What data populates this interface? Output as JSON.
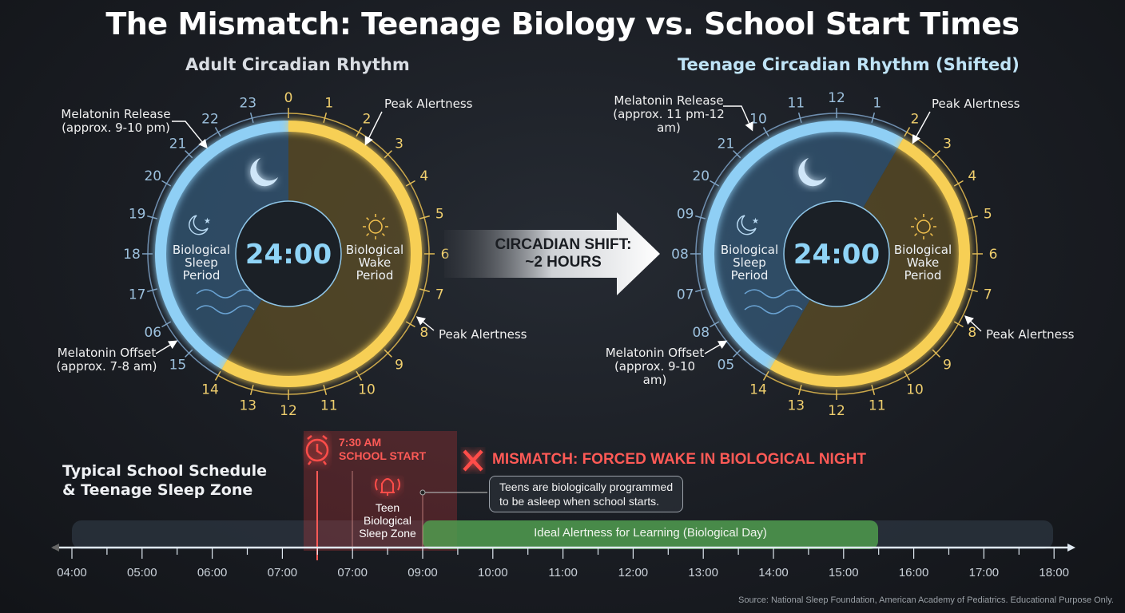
{
  "title": "The Mismatch: Teenage Biology vs. School Start Times",
  "adult": {
    "title": "Adult Circadian Rhythm",
    "center_time": "24:00",
    "sleep_label": [
      "Biological",
      "Sleep",
      "Period"
    ],
    "wake_label": [
      "Biological",
      "Wake",
      "Period"
    ],
    "dial_labels": [
      "0",
      "1",
      "2",
      "3",
      "4",
      "5",
      "6",
      "7",
      "8",
      "9",
      "10",
      "11",
      "12",
      "13",
      "14",
      "15",
      "06",
      "17",
      "18",
      "19",
      "20",
      "21",
      "22",
      "23"
    ],
    "sleep_arc_hours": [
      14,
      24
    ],
    "melatonin_release": [
      "Melatonin Release",
      "(approx. 9-10 pm)"
    ],
    "melatonin_offset": [
      "Melatonin Offset",
      "(approx. 7-8 am)"
    ],
    "peak_alertness_1": "Peak Alertness",
    "peak_alertness_2": "Peak Alertness"
  },
  "shift": {
    "line1": "CIRCADIAN SHIFT:",
    "line2": "~2 HOURS"
  },
  "teen": {
    "title": "Teenage Circadian Rhythm (Shifted)",
    "center_time": "24:00",
    "sleep_label": [
      "Biological",
      "Sleep",
      "Period"
    ],
    "wake_label": [
      "Biological",
      "Wake",
      "Period"
    ],
    "dial_labels": [
      "12",
      "1",
      "2",
      "3",
      "4",
      "5",
      "6",
      "7",
      "8",
      "9",
      "10",
      "11",
      "12",
      "13",
      "14",
      "05",
      "08",
      "07",
      "08",
      "09",
      "20",
      "21",
      "10",
      "11"
    ],
    "sleep_arc_hours": [
      14,
      26
    ],
    "melatonin_release": [
      "Melatonin Release",
      "(approx. 11 pm-12 am)"
    ],
    "melatonin_offset": [
      "Melatonin Offset",
      "(approx. 9-10 am)"
    ],
    "peak_alertness_1": "Peak Alertness",
    "peak_alertness_2": "Peak Alertness"
  },
  "schedule": {
    "title_line1": "Typical School Schedule",
    "title_line2": "& Teenage Sleep Zone",
    "school_start_line1": "7:30 AM",
    "school_start_line2": "SCHOOL START",
    "mismatch": "MISMATCH: FORCED WAKE IN BIOLOGICAL NIGHT",
    "teen_zone": [
      "Teen",
      "Biological",
      "Sleep Zone"
    ],
    "callout_line1": "Teens are biologically programmed",
    "callout_line2": "to be asleep when school starts.",
    "ideal_label": "Ideal Alertness for Learning (Biological Day)",
    "timeline_labels": [
      "04:00",
      "05:00",
      "06:00",
      "07:00",
      "07:00",
      "09:00",
      "10:00",
      "11:00",
      "12:00",
      "13:00",
      "14:00",
      "15:00",
      "16:00",
      "17:00",
      "18:00"
    ],
    "colors": {
      "alarm": "#ff4d4a",
      "ideal": "#4f9a4c",
      "sleep": "#7cc3f0",
      "wake": "#f5c542"
    }
  },
  "source": "Source: National Sleep Foundation, American Academy of Pediatrics. Educational Purpose Only."
}
